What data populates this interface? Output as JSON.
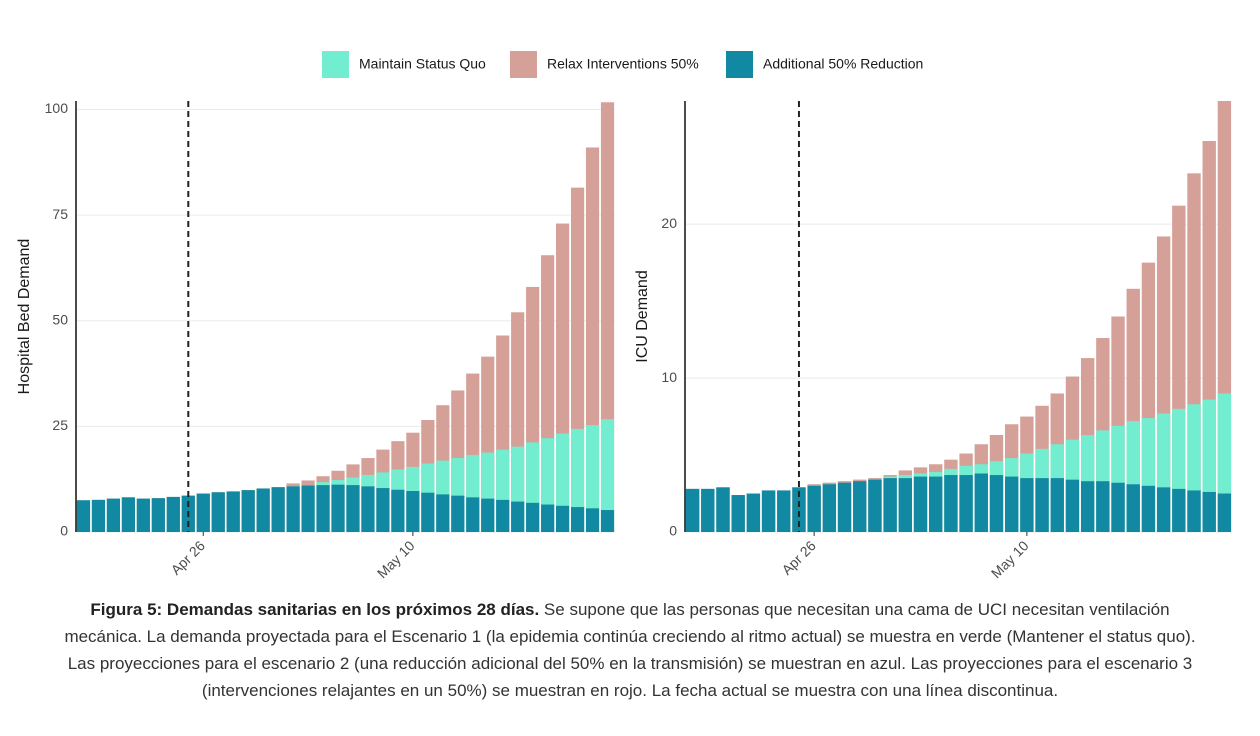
{
  "chart_data": [
    {
      "type": "bar",
      "y_label": "Hospital Bed Demand",
      "categories": [
        null,
        null,
        null,
        null,
        null,
        null,
        null,
        null,
        "Apr 26",
        null,
        null,
        null,
        null,
        null,
        null,
        null,
        null,
        null,
        null,
        null,
        null,
        null,
        "May 10",
        null,
        null,
        null,
        null,
        null,
        null,
        null,
        null,
        null,
        null,
        null,
        null,
        null
      ],
      "current_date_index": 7,
      "series": [
        {
          "name": "Maintain Status Quo",
          "color": "#72edcf",
          "values": [
            7.5,
            7.6,
            7.9,
            8.2,
            7.9,
            8.0,
            8.3,
            8.6,
            9.1,
            9.4,
            9.6,
            9.9,
            10.3,
            10.6,
            10.8,
            11.0,
            11.8,
            12.3,
            12.9,
            13.5,
            14.1,
            14.8,
            15.4,
            16.2,
            16.9,
            17.5,
            18.2,
            18.8,
            19.5,
            20.2,
            21.2,
            22.2,
            23.3,
            24.4,
            25.3,
            26.7
          ]
        },
        {
          "name": "Relax Interventions 50%",
          "color": "#d5a097",
          "values": [
            7.5,
            7.6,
            7.9,
            8.2,
            7.9,
            8.0,
            8.3,
            8.6,
            9.1,
            9.4,
            9.6,
            9.9,
            10.3,
            10.6,
            11.5,
            12.2,
            13.2,
            14.5,
            16,
            17.5,
            19.5,
            21.5,
            23.5,
            26.5,
            30,
            33.5,
            37.5,
            41.5,
            46.5,
            52,
            58,
            65.5,
            73,
            81.5,
            91,
            101.7
          ]
        },
        {
          "name": "Additional 50% Reduction",
          "color": "#1289a3",
          "values": [
            7.5,
            7.6,
            7.9,
            8.2,
            7.9,
            8.0,
            8.3,
            8.6,
            9.1,
            9.4,
            9.6,
            9.9,
            10.3,
            10.6,
            10.8,
            11.0,
            11.1,
            11.2,
            11.1,
            10.8,
            10.4,
            10.0,
            9.7,
            9.3,
            8.9,
            8.6,
            8.2,
            7.9,
            7.6,
            7.2,
            6.9,
            6.5,
            6.2,
            5.9,
            5.6,
            5.2
          ]
        }
      ],
      "ylim": [
        0,
        102
      ],
      "yticks": [
        0,
        25,
        50,
        75,
        100
      ],
      "grid": true
    },
    {
      "type": "bar",
      "y_label": "ICU Demand",
      "categories": [
        null,
        null,
        null,
        null,
        null,
        null,
        null,
        null,
        "Apr 26",
        null,
        null,
        null,
        null,
        null,
        null,
        null,
        null,
        null,
        null,
        null,
        null,
        null,
        "May 10",
        null,
        null,
        null,
        null,
        null,
        null,
        null,
        null,
        null,
        null,
        null,
        null,
        null
      ],
      "current_date_index": 7,
      "series": [
        {
          "name": "Maintain Status Quo",
          "color": "#72edcf",
          "values": [
            2.8,
            2.8,
            2.9,
            2.4,
            2.5,
            2.7,
            2.7,
            2.9,
            3.1,
            3.2,
            3.3,
            3.4,
            3.5,
            3.6,
            3.7,
            3.8,
            3.9,
            4.1,
            4.3,
            4.4,
            4.6,
            4.8,
            5.1,
            5.4,
            5.7,
            6.0,
            6.3,
            6.6,
            6.9,
            7.2,
            7.4,
            7.7,
            8.0,
            8.3,
            8.6,
            9.0
          ]
        },
        {
          "name": "Relax Interventions 50%",
          "color": "#d5a097",
          "values": [
            2.8,
            2.8,
            2.9,
            2.4,
            2.5,
            2.7,
            2.7,
            2.9,
            3.1,
            3.2,
            3.3,
            3.4,
            3.5,
            3.7,
            4.0,
            4.2,
            4.4,
            4.7,
            5.1,
            5.7,
            6.3,
            7.0,
            7.5,
            8.2,
            9.0,
            10.1,
            11.3,
            12.6,
            14.0,
            15.8,
            17.5,
            19.2,
            21.2,
            23.3,
            25.4,
            28.0
          ]
        },
        {
          "name": "Additional 50% Reduction",
          "color": "#1289a3",
          "values": [
            2.8,
            2.8,
            2.9,
            2.4,
            2.5,
            2.7,
            2.7,
            2.9,
            3.0,
            3.1,
            3.2,
            3.3,
            3.4,
            3.5,
            3.5,
            3.6,
            3.6,
            3.7,
            3.7,
            3.8,
            3.7,
            3.6,
            3.5,
            3.5,
            3.5,
            3.4,
            3.3,
            3.3,
            3.2,
            3.1,
            3.0,
            2.9,
            2.8,
            2.7,
            2.6,
            2.5
          ]
        }
      ],
      "ylim": [
        0,
        28
      ],
      "yticks": [
        0,
        10,
        20
      ],
      "grid": true
    }
  ],
  "caption": {
    "bold": "Figura 5: Demandas sanitarias en los próximos 28 días.",
    "text": " Se supone que las personas que necesitan una cama de UCI necesitan ventilación mecánica. La demanda proyectada para el Escenario 1 (la epidemia continúa creciendo al ritmo actual) se muestra en verde (Mantener el status quo). Las proyecciones para el escenario 2 (una reducción adicional del 50% en la transmisión) se muestran en azul. Las proyecciones para el escenario 3 (intervenciones relajantes en un 50%) se muestran en rojo. La fecha actual se muestra con una línea discontinua."
  }
}
